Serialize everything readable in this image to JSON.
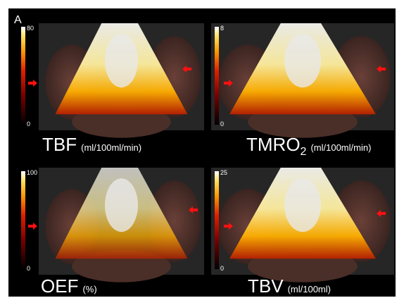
{
  "panel_label": "A",
  "panels": [
    {
      "label": "TBF",
      "subscript": null,
      "unit": "(ml/100ml/min)",
      "colorbar_max": 80,
      "colorbar_min": 0
    },
    {
      "label": "TMRO",
      "subscript": "2",
      "unit": "(ml/100ml/min)",
      "colorbar_max": 8,
      "colorbar_min": 0
    },
    {
      "label": "OEF",
      "subscript": null,
      "unit": "(%)",
      "colorbar_max": 100,
      "colorbar_min": 0
    },
    {
      "label": "TBV",
      "subscript": null,
      "unit": "(ml/100ml)",
      "colorbar_max": 25,
      "colorbar_min": 0
    }
  ]
}
